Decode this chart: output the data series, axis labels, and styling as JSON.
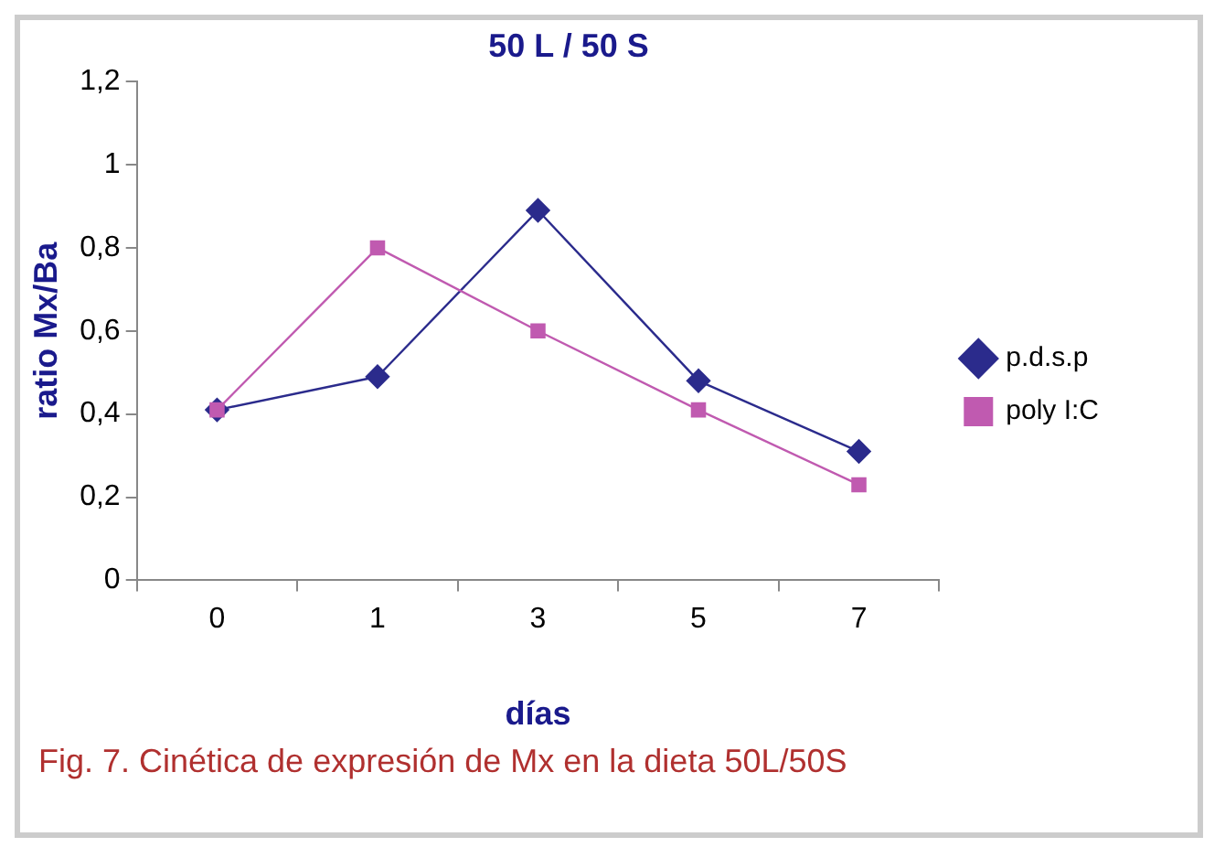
{
  "chart_data": {
    "type": "line",
    "title": "50 L / 50 S",
    "xlabel": "días",
    "ylabel": "ratio Mx/Ba",
    "categories": [
      "0",
      "1",
      "3",
      "5",
      "7"
    ],
    "series": [
      {
        "name": "p.d.s.p",
        "color": "#2b2b8c",
        "marker": "diamond",
        "values": [
          0.41,
          0.49,
          0.89,
          0.48,
          0.31
        ]
      },
      {
        "name": "poly I:C",
        "color": "#c05ab0",
        "marker": "square",
        "values": [
          0.41,
          0.8,
          0.6,
          0.41,
          0.23
        ]
      }
    ],
    "ylim": [
      0,
      1.2
    ],
    "yticks": [
      0,
      {
        "value": 0.2,
        "label": "0,2"
      },
      {
        "value": 0.4,
        "label": "0,4"
      },
      {
        "value": 0.6,
        "label": "0,6"
      },
      {
        "value": 0.8,
        "label": "0,8"
      },
      1,
      {
        "value": 1.2,
        "label": "1,2"
      }
    ],
    "grid": false,
    "legend": "right",
    "annotations": [
      "Fig. 7. Cinética de expresión de Mx en la dieta 50L/50S"
    ]
  }
}
